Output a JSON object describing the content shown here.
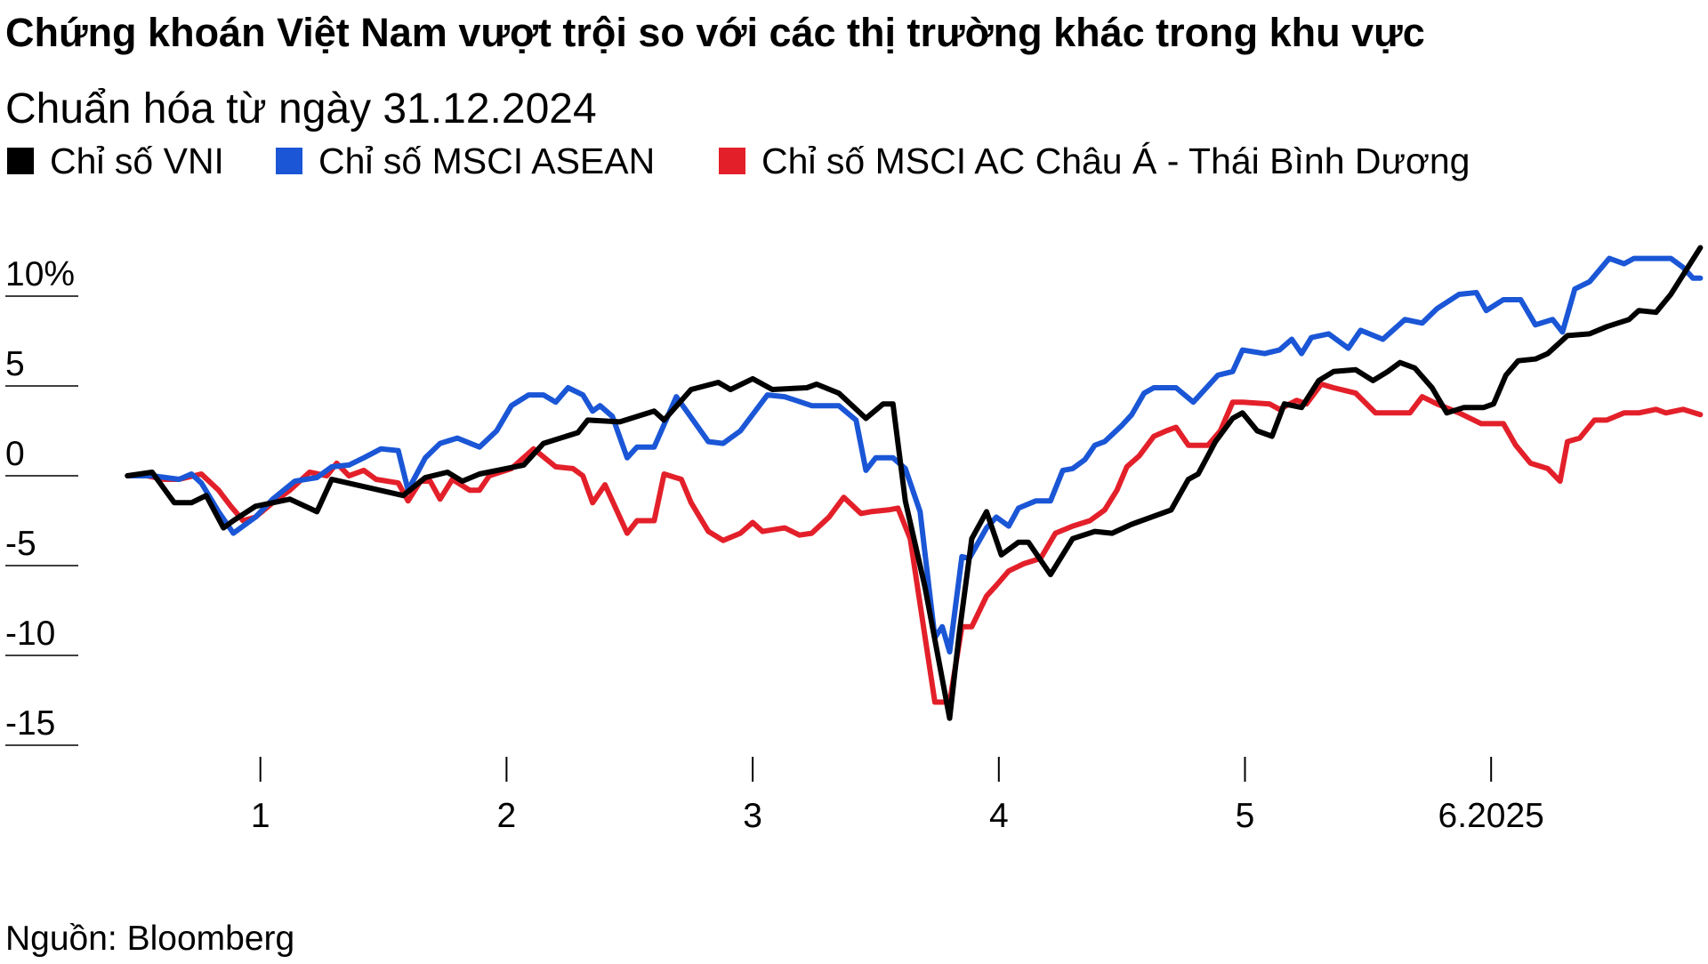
{
  "chart_data": {
    "type": "line",
    "title": "Chứng khoán Việt Nam vượt trội so với các thị trường khác trong khu vực",
    "subtitle": "Chuẩn hóa từ ngày 31.12.2024",
    "source": "Nguồn: Bloomberg",
    "xlabel": "",
    "ylabel": "",
    "x_ticks": [
      {
        "value": 1,
        "label": "1"
      },
      {
        "value": 2,
        "label": "2"
      },
      {
        "value": 3,
        "label": "3"
      },
      {
        "value": 4,
        "label": "4"
      },
      {
        "value": 5,
        "label": "5"
      },
      {
        "value": 6,
        "label": "6.2025"
      }
    ],
    "y_ticks": [
      {
        "value": 10,
        "label": "10%"
      },
      {
        "value": 5,
        "label": "5"
      },
      {
        "value": 0,
        "label": "0"
      },
      {
        "value": -5,
        "label": "-5"
      },
      {
        "value": -10,
        "label": "-10"
      },
      {
        "value": -15,
        "label": "-15"
      }
    ],
    "ylim": [
      -15,
      12.7
    ],
    "grid": false,
    "legend_position": "top-left",
    "series": [
      {
        "name": "Chỉ số VNI",
        "color": "#000000",
        "points": [
          [
            0.46,
            0
          ],
          [
            0.56,
            0.2
          ],
          [
            0.65,
            -1.5
          ],
          [
            0.72,
            -1.5
          ],
          [
            0.78,
            -1.1
          ],
          [
            0.85,
            -2.9
          ],
          [
            0.89,
            -2.5
          ],
          [
            0.98,
            -1.7
          ],
          [
            1.12,
            -1.3
          ],
          [
            1.23,
            -2.0
          ],
          [
            1.29,
            -0.2
          ],
          [
            1.58,
            -1.1
          ],
          [
            1.67,
            -0.1
          ],
          [
            1.76,
            0.2
          ],
          [
            1.82,
            -0.3
          ],
          [
            1.89,
            0.1
          ],
          [
            2.07,
            0.6
          ],
          [
            2.15,
            1.8
          ],
          [
            2.29,
            2.4
          ],
          [
            2.33,
            3.1
          ],
          [
            2.46,
            3.0
          ],
          [
            2.6,
            3.6
          ],
          [
            2.64,
            3.1
          ],
          [
            2.75,
            4.8
          ],
          [
            2.86,
            5.2
          ],
          [
            2.91,
            4.8
          ],
          [
            3.0,
            5.4
          ],
          [
            3.08,
            4.8
          ],
          [
            3.22,
            4.9
          ],
          [
            3.26,
            5.1
          ],
          [
            3.35,
            4.6
          ],
          [
            3.46,
            3.2
          ],
          [
            3.53,
            4.0
          ],
          [
            3.57,
            4.0
          ],
          [
            3.62,
            -1.4
          ],
          [
            3.7,
            -6.2
          ],
          [
            3.8,
            -13.5
          ],
          [
            3.84,
            -8.7
          ],
          [
            3.89,
            -3.5
          ],
          [
            3.95,
            -2.0
          ],
          [
            4.01,
            -4.4
          ],
          [
            4.08,
            -3.7
          ],
          [
            4.12,
            -3.7
          ],
          [
            4.21,
            -5.5
          ],
          [
            4.3,
            -3.5
          ],
          [
            4.39,
            -3.1
          ],
          [
            4.46,
            -3.2
          ],
          [
            4.54,
            -2.7
          ],
          [
            4.7,
            -1.9
          ],
          [
            4.77,
            -0.2
          ],
          [
            4.81,
            0.1
          ],
          [
            4.88,
            1.9
          ],
          [
            4.95,
            3.2
          ],
          [
            4.99,
            3.5
          ],
          [
            5.05,
            2.5
          ],
          [
            5.11,
            2.2
          ],
          [
            5.16,
            4.0
          ],
          [
            5.23,
            3.8
          ],
          [
            5.3,
            5.3
          ],
          [
            5.36,
            5.8
          ],
          [
            5.45,
            5.9
          ],
          [
            5.52,
            5.3
          ],
          [
            5.58,
            5.8
          ],
          [
            5.63,
            6.3
          ],
          [
            5.69,
            6.0
          ],
          [
            5.76,
            4.9
          ],
          [
            5.82,
            3.5
          ],
          [
            5.89,
            3.8
          ],
          [
            5.97,
            3.8
          ],
          [
            6.01,
            4.0
          ],
          [
            6.06,
            5.6
          ],
          [
            6.11,
            6.4
          ],
          [
            6.18,
            6.5
          ],
          [
            6.23,
            6.8
          ],
          [
            6.31,
            7.8
          ],
          [
            6.4,
            7.9
          ],
          [
            6.47,
            8.3
          ],
          [
            6.56,
            8.7
          ],
          [
            6.6,
            9.2
          ],
          [
            6.67,
            9.1
          ],
          [
            6.73,
            10.1
          ],
          [
            6.85,
            12.7
          ]
        ]
      },
      {
        "name": "Chỉ số MSCI ASEAN",
        "color": "#1a56d6",
        "points": [
          [
            0.46,
            0
          ],
          [
            0.56,
            0
          ],
          [
            0.67,
            -0.2
          ],
          [
            0.72,
            0.1
          ],
          [
            0.76,
            -0.4
          ],
          [
            0.83,
            -2.0
          ],
          [
            0.89,
            -3.2
          ],
          [
            0.98,
            -2.3
          ],
          [
            1.05,
            -1.3
          ],
          [
            1.14,
            -0.3
          ],
          [
            1.23,
            -0.1
          ],
          [
            1.29,
            0.5
          ],
          [
            1.36,
            0.6
          ],
          [
            1.42,
            1.0
          ],
          [
            1.49,
            1.5
          ],
          [
            1.56,
            1.4
          ],
          [
            1.6,
            -0.8
          ],
          [
            1.67,
            1.0
          ],
          [
            1.73,
            1.8
          ],
          [
            1.8,
            2.1
          ],
          [
            1.89,
            1.6
          ],
          [
            1.96,
            2.5
          ],
          [
            2.02,
            3.9
          ],
          [
            2.09,
            4.5
          ],
          [
            2.15,
            4.5
          ],
          [
            2.2,
            4.1
          ],
          [
            2.25,
            4.9
          ],
          [
            2.31,
            4.5
          ],
          [
            2.35,
            3.6
          ],
          [
            2.38,
            3.9
          ],
          [
            2.43,
            3.3
          ],
          [
            2.49,
            1.0
          ],
          [
            2.53,
            1.6
          ],
          [
            2.6,
            1.6
          ],
          [
            2.69,
            4.4
          ],
          [
            2.82,
            1.9
          ],
          [
            2.88,
            1.8
          ],
          [
            2.95,
            2.5
          ],
          [
            3.06,
            4.5
          ],
          [
            3.13,
            4.4
          ],
          [
            3.24,
            3.9
          ],
          [
            3.35,
            3.9
          ],
          [
            3.42,
            3.1
          ],
          [
            3.46,
            0.3
          ],
          [
            3.5,
            1.0
          ],
          [
            3.57,
            1.0
          ],
          [
            3.62,
            0.4
          ],
          [
            3.68,
            -2.0
          ],
          [
            3.74,
            -9.0
          ],
          [
            3.77,
            -8.4
          ],
          [
            3.8,
            -9.8
          ],
          [
            3.85,
            -4.5
          ],
          [
            3.88,
            -4.6
          ],
          [
            3.95,
            -2.9
          ],
          [
            3.99,
            -2.3
          ],
          [
            4.04,
            -2.8
          ],
          [
            4.08,
            -1.8
          ],
          [
            4.15,
            -1.4
          ],
          [
            4.21,
            -1.4
          ],
          [
            4.26,
            0.3
          ],
          [
            4.3,
            0.4
          ],
          [
            4.35,
            0.9
          ],
          [
            4.39,
            1.7
          ],
          [
            4.43,
            1.9
          ],
          [
            4.5,
            2.8
          ],
          [
            4.54,
            3.4
          ],
          [
            4.59,
            4.6
          ],
          [
            4.63,
            4.9
          ],
          [
            4.72,
            4.9
          ],
          [
            4.79,
            4.1
          ],
          [
            4.89,
            5.6
          ],
          [
            4.95,
            5.8
          ],
          [
            4.99,
            7.0
          ],
          [
            5.08,
            6.8
          ],
          [
            5.14,
            7.0
          ],
          [
            5.19,
            7.6
          ],
          [
            5.23,
            6.8
          ],
          [
            5.27,
            7.7
          ],
          [
            5.34,
            7.9
          ],
          [
            5.42,
            7.1
          ],
          [
            5.47,
            8.1
          ],
          [
            5.56,
            7.6
          ],
          [
            5.65,
            8.7
          ],
          [
            5.72,
            8.5
          ],
          [
            5.78,
            9.3
          ],
          [
            5.87,
            10.1
          ],
          [
            5.94,
            10.2
          ],
          [
            5.98,
            9.2
          ],
          [
            6.05,
            9.8
          ],
          [
            6.12,
            9.8
          ],
          [
            6.18,
            8.4
          ],
          [
            6.25,
            8.7
          ],
          [
            6.29,
            8.0
          ],
          [
            6.34,
            10.4
          ],
          [
            6.4,
            10.8
          ],
          [
            6.48,
            12.1
          ],
          [
            6.54,
            11.8
          ],
          [
            6.58,
            12.1
          ],
          [
            6.73,
            12.1
          ],
          [
            6.78,
            11.6
          ],
          [
            6.82,
            11.0
          ],
          [
            6.85,
            11.0
          ]
        ]
      },
      {
        "name": "Chỉ số MSCI AC Châu Á - Thái Bình Dương",
        "color": "#e3202a",
        "points": [
          [
            0.46,
            0
          ],
          [
            0.54,
            0
          ],
          [
            0.61,
            -0.2
          ],
          [
            0.67,
            -0.2
          ],
          [
            0.76,
            0.1
          ],
          [
            0.83,
            -0.8
          ],
          [
            0.88,
            -1.7
          ],
          [
            0.93,
            -2.5
          ],
          [
            0.98,
            -2.3
          ],
          [
            1.05,
            -1.5
          ],
          [
            1.12,
            -0.8
          ],
          [
            1.2,
            0.2
          ],
          [
            1.27,
            0
          ],
          [
            1.31,
            0.7
          ],
          [
            1.36,
            0
          ],
          [
            1.42,
            0.3
          ],
          [
            1.47,
            -0.2
          ],
          [
            1.56,
            -0.4
          ],
          [
            1.6,
            -1.4
          ],
          [
            1.65,
            -0.3
          ],
          [
            1.69,
            -0.3
          ],
          [
            1.73,
            -1.3
          ],
          [
            1.78,
            -0.2
          ],
          [
            1.85,
            -0.8
          ],
          [
            1.89,
            -0.8
          ],
          [
            1.93,
            0
          ],
          [
            2.02,
            0.4
          ],
          [
            2.11,
            1.5
          ],
          [
            2.2,
            0.5
          ],
          [
            2.27,
            0.4
          ],
          [
            2.31,
            0
          ],
          [
            2.35,
            -1.5
          ],
          [
            2.4,
            -0.5
          ],
          [
            2.49,
            -3.2
          ],
          [
            2.53,
            -2.5
          ],
          [
            2.6,
            -2.5
          ],
          [
            2.64,
            0.1
          ],
          [
            2.71,
            -0.2
          ],
          [
            2.75,
            -1.5
          ],
          [
            2.82,
            -3.1
          ],
          [
            2.88,
            -3.6
          ],
          [
            2.95,
            -3.2
          ],
          [
            3.0,
            -2.6
          ],
          [
            3.04,
            -3.1
          ],
          [
            3.13,
            -2.9
          ],
          [
            3.19,
            -3.3
          ],
          [
            3.24,
            -3.2
          ],
          [
            3.31,
            -2.3
          ],
          [
            3.37,
            -1.2
          ],
          [
            3.44,
            -2.1
          ],
          [
            3.48,
            -2.0
          ],
          [
            3.55,
            -1.9
          ],
          [
            3.59,
            -1.8
          ],
          [
            3.64,
            -3.5
          ],
          [
            3.74,
            -12.6
          ],
          [
            3.8,
            -12.6
          ],
          [
            3.85,
            -8.4
          ],
          [
            3.89,
            -8.4
          ],
          [
            3.95,
            -6.7
          ],
          [
            3.99,
            -6.1
          ],
          [
            4.04,
            -5.3
          ],
          [
            4.1,
            -4.9
          ],
          [
            4.17,
            -4.6
          ],
          [
            4.23,
            -3.2
          ],
          [
            4.3,
            -2.8
          ],
          [
            4.37,
            -2.5
          ],
          [
            4.43,
            -1.9
          ],
          [
            4.48,
            -0.8
          ],
          [
            4.52,
            0.5
          ],
          [
            4.57,
            1.1
          ],
          [
            4.63,
            2.2
          ],
          [
            4.68,
            2.5
          ],
          [
            4.72,
            2.7
          ],
          [
            4.77,
            1.7
          ],
          [
            4.85,
            1.7
          ],
          [
            4.9,
            2.5
          ],
          [
            4.95,
            4.1
          ],
          [
            4.99,
            4.1
          ],
          [
            5.1,
            4.0
          ],
          [
            5.14,
            3.7
          ],
          [
            5.21,
            4.2
          ],
          [
            5.25,
            4.0
          ],
          [
            5.31,
            5.1
          ],
          [
            5.36,
            4.9
          ],
          [
            5.45,
            4.6
          ],
          [
            5.53,
            3.5
          ],
          [
            5.67,
            3.5
          ],
          [
            5.72,
            4.4
          ],
          [
            5.78,
            4.0
          ],
          [
            5.87,
            3.5
          ],
          [
            5.96,
            2.9
          ],
          [
            6.05,
            2.9
          ],
          [
            6.1,
            1.7
          ],
          [
            6.16,
            0.7
          ],
          [
            6.23,
            0.4
          ],
          [
            6.28,
            -0.3
          ],
          [
            6.31,
            1.9
          ],
          [
            6.36,
            2.1
          ],
          [
            6.42,
            3.1
          ],
          [
            6.47,
            3.1
          ],
          [
            6.54,
            3.5
          ],
          [
            6.6,
            3.5
          ],
          [
            6.67,
            3.7
          ],
          [
            6.71,
            3.5
          ],
          [
            6.78,
            3.7
          ],
          [
            6.85,
            3.4
          ]
        ]
      }
    ]
  }
}
